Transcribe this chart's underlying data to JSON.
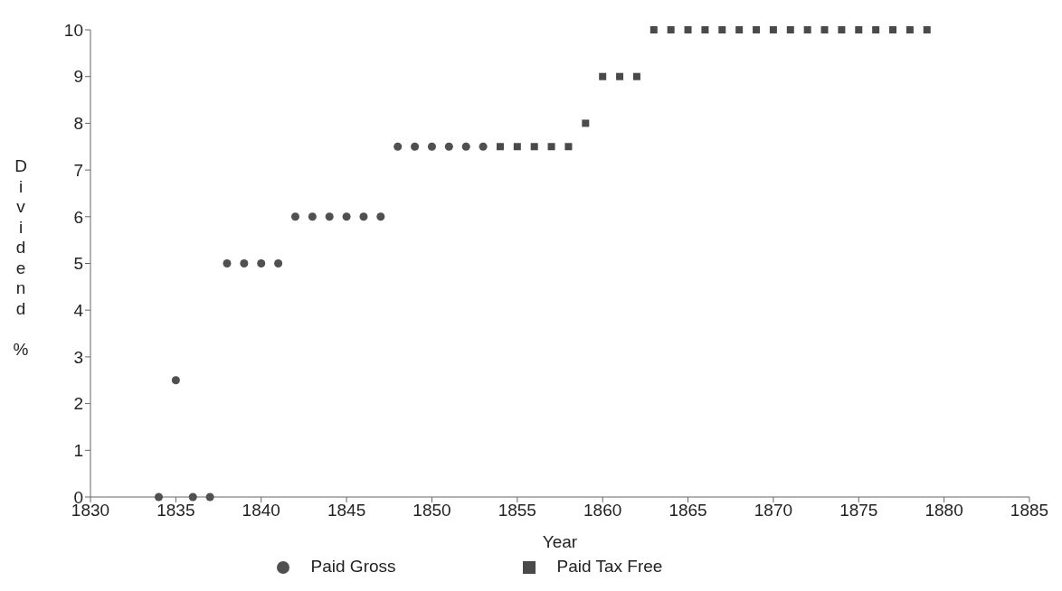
{
  "chart_data": {
    "type": "scatter",
    "xlabel": "Year",
    "ylabel": "Dividend %",
    "xlim": [
      1830,
      1885
    ],
    "xticks": [
      1830,
      1835,
      1840,
      1845,
      1850,
      1855,
      1860,
      1865,
      1870,
      1875,
      1880,
      1885
    ],
    "ylim": [
      0,
      10
    ],
    "yticks": [
      0,
      1,
      2,
      3,
      4,
      5,
      6,
      7,
      8,
      9,
      10
    ],
    "grid": false,
    "legend": "bottom",
    "series": [
      {
        "name": "Paid Gross",
        "color": "#505050",
        "marker": "circle",
        "x": [
          1834,
          1835,
          1836,
          1837,
          1838,
          1839,
          1840,
          1841,
          1842,
          1843,
          1844,
          1845,
          1846,
          1847,
          1848,
          1849,
          1850,
          1851,
          1852,
          1853
        ],
        "values": [
          0,
          2.5,
          0,
          0,
          5,
          5,
          5,
          5,
          6,
          6,
          6,
          6,
          6,
          6,
          7.5,
          7.5,
          7.5,
          7.5,
          7.5,
          7.5
        ]
      },
      {
        "name": "Paid Tax Free",
        "color": "#4a4a4a",
        "marker": "square",
        "x": [
          1854,
          1855,
          1856,
          1857,
          1858,
          1859,
          1860,
          1861,
          1862,
          1863,
          1864,
          1865,
          1866,
          1867,
          1868,
          1869,
          1870,
          1871,
          1872,
          1873,
          1874,
          1875,
          1876,
          1877,
          1878,
          1879
        ],
        "values": [
          7.5,
          7.5,
          7.5,
          7.5,
          7.5,
          8,
          9,
          9,
          9,
          10,
          10,
          10,
          10,
          10,
          10,
          10,
          10,
          10,
          10,
          10,
          10,
          10,
          10,
          10,
          10,
          10
        ]
      }
    ]
  }
}
